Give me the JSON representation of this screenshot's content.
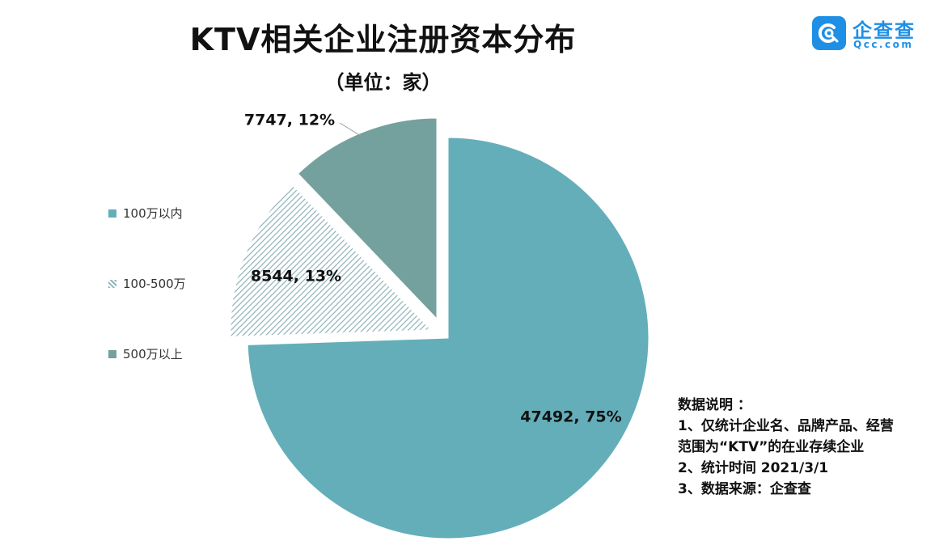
{
  "title": "KTV相关企业注册资本分布",
  "subtitle": "（单位：家）",
  "logo": {
    "name": "企查查",
    "domain": "Qcc.com"
  },
  "chart_data": {
    "type": "pie",
    "title": "KTV相关企业注册资本分布",
    "unit": "家",
    "legend_position": "left",
    "slices": [
      {
        "name": "100万以内",
        "value": 47492,
        "percent": "75%",
        "label": "47492, 75%",
        "color": "#64aeb9",
        "pattern": "solid"
      },
      {
        "name": "100-500万",
        "value": 8544,
        "percent": "13%",
        "label": "8544, 13%",
        "color": "#a2c2c8",
        "pattern": "diagonal-hatch"
      },
      {
        "name": "500万以上",
        "value": 7747,
        "percent": "12%",
        "label": "7747, 12%",
        "color": "#74a19d",
        "pattern": "solid"
      }
    ]
  },
  "notes": {
    "heading": "数据说明 ：",
    "lines": [
      "1、仅统计企业名、品牌产品、经营",
      "范围为“KTV”的在业存续企业",
      "2、统计时间 2021/3/1",
      "3、数据来源：企查查"
    ]
  }
}
